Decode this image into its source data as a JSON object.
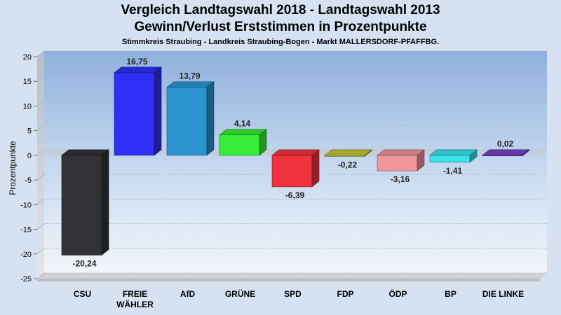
{
  "chart_data": {
    "type": "bar",
    "title": "Vergleich Landtagswahl 2018 - Landtagswahl 2013",
    "subtitle": "Gewinn/Verlust Erststimmen in Prozentpunkte",
    "caption": "Stimmkreis Straubing - Landkreis Straubing-Bogen - Markt MALLERSDORF-PFAFFBG.",
    "ylabel": "Prozentpunkte",
    "xlabel": "",
    "ylim": [
      -25,
      20
    ],
    "yticks": [
      20,
      15,
      10,
      5,
      0,
      -5,
      -10,
      -15,
      -20,
      -25
    ],
    "categories": [
      "CSU",
      "FREIE WÄHLER",
      "AfD",
      "GRÜNE",
      "SPD",
      "FDP",
      "ÖDP",
      "BP",
      "DIE LINKE"
    ],
    "category_lines": [
      [
        "CSU"
      ],
      [
        "FREIE",
        "WÄHLER"
      ],
      [
        "AfD"
      ],
      [
        "GRÜNE"
      ],
      [
        "SPD"
      ],
      [
        "FDP"
      ],
      [
        "ÖDP"
      ],
      [
        "BP"
      ],
      [
        "DIE LINKE"
      ]
    ],
    "values": [
      -20.24,
      16.75,
      13.79,
      4.14,
      -6.39,
      -0.22,
      -3.16,
      -1.41,
      0.02
    ],
    "value_labels": [
      "-20,24",
      "16,75",
      "13,79",
      "4,14",
      "-6,39",
      "-0,22",
      "-3,16",
      "-1,41",
      "0,02"
    ],
    "colors": [
      "#303236",
      "#2f2ff5",
      "#2c94d0",
      "#35ee35",
      "#f0323e",
      "#c8c435",
      "#ef959c",
      "#37e4ea",
      "#7a3fc4"
    ],
    "grid": true,
    "legend": "none"
  }
}
